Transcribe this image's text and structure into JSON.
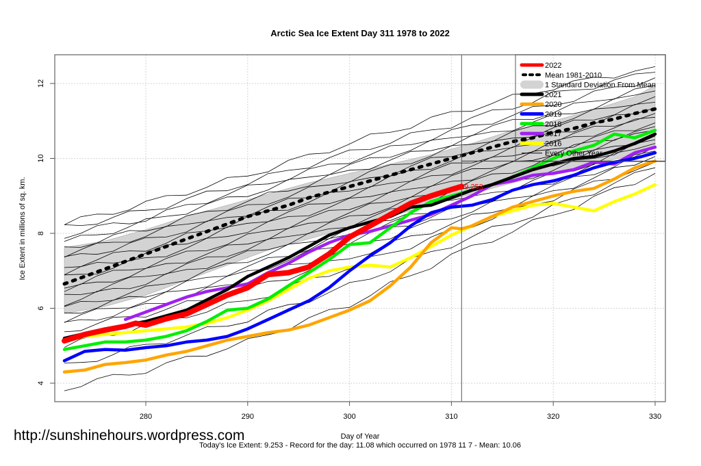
{
  "chart_data": {
    "type": "line",
    "title": "Arctic Sea Ice Extent Day 311 1978 to 2022",
    "xlabel": "Day of Year",
    "ylabel": "Ice Extent in millions of sq. km.",
    "xlim": [
      271.2,
      331.1
    ],
    "ylim": [
      3.5,
      12.75
    ],
    "xticks": [
      280,
      290,
      300,
      310,
      320,
      330
    ],
    "yticks": [
      4,
      6,
      8,
      10,
      12
    ],
    "grid": true,
    "legend_position": "top-right",
    "current_day": 311,
    "current_value": 9.253,
    "current_value_label": "9.253",
    "reference_hline": 9.93,
    "legend": [
      {
        "label": "2022",
        "color": "#ff0000",
        "style": "thick"
      },
      {
        "label": "Mean 1981-2010",
        "color": "#000000",
        "style": "dotted"
      },
      {
        "label": "1 Standard Deviation From Mean",
        "color": "#d3d3d3",
        "style": "band"
      },
      {
        "label": "2021",
        "color": "#000000",
        "style": "thick"
      },
      {
        "label": "2020",
        "color": "#ffa500",
        "style": "thick"
      },
      {
        "label": "2019",
        "color": "#0000ff",
        "style": "thick"
      },
      {
        "label": "2018",
        "color": "#00ee00",
        "style": "thick"
      },
      {
        "label": "2017",
        "color": "#a020f0",
        "style": "thick"
      },
      {
        "label": "2016",
        "color": "#ffff00",
        "style": "thick"
      },
      {
        "label": "Every Other Year",
        "color": "#000000",
        "style": "thin"
      }
    ],
    "band": {
      "x": [
        272,
        276,
        280,
        284,
        288,
        292,
        296,
        300,
        304,
        308,
        312,
        316,
        320,
        324,
        328,
        330
      ],
      "upper": [
        7.62,
        7.8,
        8.1,
        8.45,
        8.75,
        9.05,
        9.35,
        9.6,
        9.85,
        10.1,
        10.4,
        10.75,
        11.0,
        11.3,
        11.65,
        11.95
      ],
      "lower": [
        5.86,
        6.05,
        6.35,
        6.75,
        7.15,
        7.55,
        7.85,
        8.15,
        8.45,
        8.75,
        9.05,
        9.35,
        9.6,
        9.85,
        10.1,
        10.3
      ]
    },
    "mean": {
      "name": "Mean 1981-2010",
      "x": [
        272,
        274,
        276,
        278,
        280,
        282,
        284,
        286,
        288,
        290,
        292,
        294,
        296,
        298,
        300,
        302,
        304,
        306,
        308,
        310,
        312,
        314,
        316,
        318,
        320,
        322,
        324,
        326,
        328,
        330
      ],
      "values": [
        6.65,
        6.85,
        7.05,
        7.25,
        7.45,
        7.65,
        7.85,
        8.05,
        8.25,
        8.45,
        8.6,
        8.75,
        8.95,
        9.1,
        9.25,
        9.4,
        9.55,
        9.7,
        9.85,
        10.0,
        10.15,
        10.3,
        10.45,
        10.55,
        10.7,
        10.8,
        10.95,
        11.05,
        11.2,
        11.32
      ]
    },
    "series": [
      {
        "name": "2022",
        "color": "#ff0000",
        "x": [
          272,
          274,
          276,
          278,
          279,
          280,
          282,
          284,
          286,
          288,
          290,
          292,
          294,
          296,
          298,
          300,
          302,
          304,
          306,
          308,
          310,
          311
        ],
        "values": [
          5.13,
          5.3,
          5.42,
          5.52,
          5.6,
          5.55,
          5.72,
          5.85,
          6.1,
          6.35,
          6.55,
          6.9,
          6.95,
          7.1,
          7.45,
          7.9,
          8.2,
          8.5,
          8.8,
          9.0,
          9.17,
          9.253
        ]
      },
      {
        "name": "2021",
        "color": "#000000",
        "x": [
          272,
          276,
          280,
          284,
          288,
          290,
          292,
          294,
          296,
          298,
          300,
          302,
          304,
          306,
          308,
          310,
          312,
          314,
          316,
          318,
          320,
          322,
          324,
          326,
          328,
          330
        ],
        "values": [
          5.2,
          5.45,
          5.65,
          5.95,
          6.5,
          6.85,
          7.1,
          7.35,
          7.65,
          7.95,
          8.15,
          8.3,
          8.45,
          8.7,
          8.75,
          8.95,
          9.15,
          9.3,
          9.5,
          9.7,
          9.85,
          10.0,
          10.05,
          10.2,
          10.4,
          10.65
        ]
      },
      {
        "name": "2020",
        "color": "#ffa500",
        "x": [
          272,
          274,
          276,
          278,
          280,
          282,
          284,
          286,
          288,
          290,
          292,
          294,
          296,
          298,
          300,
          302,
          304,
          306,
          308,
          310,
          311,
          312,
          314,
          316,
          318,
          320,
          322,
          324,
          326,
          328,
          330
        ],
        "values": [
          4.3,
          4.35,
          4.5,
          4.55,
          4.62,
          4.75,
          4.85,
          5.0,
          5.15,
          5.25,
          5.35,
          5.42,
          5.55,
          5.75,
          5.95,
          6.2,
          6.6,
          7.1,
          7.75,
          8.15,
          8.12,
          8.2,
          8.45,
          8.7,
          8.85,
          9.0,
          9.12,
          9.2,
          9.45,
          9.75,
          9.93
        ]
      },
      {
        "name": "2019",
        "color": "#0000ff",
        "x": [
          272,
          274,
          276,
          278,
          280,
          282,
          284,
          286,
          288,
          290,
          292,
          294,
          296,
          298,
          300,
          302,
          304,
          306,
          308,
          310,
          312,
          314,
          316,
          318,
          320,
          322,
          324,
          326,
          328,
          330
        ],
        "values": [
          4.6,
          4.85,
          4.9,
          4.88,
          4.95,
          5.0,
          5.1,
          5.15,
          5.25,
          5.45,
          5.7,
          5.95,
          6.2,
          6.55,
          7.0,
          7.4,
          7.75,
          8.2,
          8.55,
          8.7,
          8.75,
          8.9,
          9.15,
          9.3,
          9.4,
          9.55,
          9.75,
          9.9,
          10.0,
          10.15
        ]
      },
      {
        "name": "2018",
        "color": "#00ee00",
        "x": [
          272,
          274,
          276,
          278,
          280,
          282,
          284,
          286,
          288,
          290,
          292,
          294,
          296,
          298,
          300,
          302,
          304,
          306,
          308,
          310,
          312,
          314,
          316,
          318,
          320,
          322,
          324,
          326,
          328,
          330
        ],
        "values": [
          4.9,
          5.0,
          5.1,
          5.1,
          5.15,
          5.25,
          5.4,
          5.65,
          5.95,
          6.0,
          6.25,
          6.6,
          6.95,
          7.3,
          7.7,
          7.75,
          8.15,
          8.55,
          8.85,
          9.0,
          9.15,
          9.3,
          9.5,
          9.75,
          10.0,
          10.2,
          10.35,
          10.65,
          10.55,
          10.75
        ]
      },
      {
        "name": "2017",
        "color": "#a020f0",
        "x": [
          278,
          280,
          282,
          284,
          286,
          288,
          290,
          292,
          294,
          296,
          298,
          300,
          302,
          304,
          306,
          308,
          310,
          312,
          314,
          316,
          318,
          320,
          322,
          324,
          326,
          328,
          330
        ],
        "values": [
          5.7,
          5.9,
          6.1,
          6.3,
          6.45,
          6.55,
          6.65,
          6.95,
          7.2,
          7.5,
          7.75,
          7.95,
          8.05,
          8.2,
          8.35,
          8.5,
          8.75,
          9.0,
          9.3,
          9.4,
          9.55,
          9.6,
          9.7,
          9.9,
          9.85,
          10.15,
          10.3
        ]
      },
      {
        "name": "2016",
        "color": "#ffff00",
        "x": [
          272,
          274,
          276,
          278,
          280,
          282,
          284,
          286,
          288,
          290,
          292,
          294,
          296,
          298,
          300,
          302,
          304,
          306,
          308,
          310,
          312,
          314,
          316,
          318,
          320,
          322,
          324,
          326,
          328,
          330
        ],
        "values": [
          5.15,
          5.25,
          5.3,
          5.35,
          5.4,
          5.45,
          5.5,
          5.6,
          5.75,
          5.95,
          6.2,
          6.5,
          6.8,
          7.0,
          7.1,
          7.15,
          7.1,
          7.35,
          7.65,
          7.95,
          8.2,
          8.45,
          8.6,
          8.75,
          8.8,
          8.7,
          8.6,
          8.85,
          9.05,
          9.3
        ]
      }
    ],
    "background_years": {
      "label": "Every Other Year",
      "color": "#000000",
      "lines": [
        {
          "x": [
            272,
            280,
            290,
            300,
            310,
            320,
            330
          ],
          "values": [
            8.25,
            8.8,
            9.55,
            10.4,
            11.2,
            11.9,
            12.45
          ]
        },
        {
          "x": [
            272,
            280,
            290,
            300,
            310,
            320,
            330
          ],
          "values": [
            8.15,
            8.6,
            9.35,
            10.15,
            10.9,
            11.7,
            12.3
          ]
        },
        {
          "x": [
            272,
            280,
            290,
            300,
            310,
            320,
            330
          ],
          "values": [
            7.95,
            8.4,
            9.2,
            9.95,
            10.7,
            11.45,
            12.15
          ]
        },
        {
          "x": [
            272,
            280,
            290,
            300,
            310,
            320,
            330
          ],
          "values": [
            7.75,
            8.3,
            9.05,
            9.8,
            10.55,
            11.25,
            11.95
          ]
        },
        {
          "x": [
            272,
            280,
            290,
            300,
            310,
            320,
            330
          ],
          "values": [
            7.6,
            8.1,
            8.85,
            9.65,
            10.4,
            11.1,
            11.8
          ]
        },
        {
          "x": [
            272,
            280,
            290,
            300,
            310,
            320,
            330
          ],
          "values": [
            7.45,
            7.95,
            8.7,
            9.45,
            10.25,
            10.95,
            11.65
          ]
        },
        {
          "x": [
            272,
            280,
            290,
            300,
            310,
            320,
            330
          ],
          "values": [
            7.3,
            7.8,
            8.55,
            9.3,
            10.1,
            10.8,
            11.5
          ]
        },
        {
          "x": [
            272,
            280,
            290,
            300,
            310,
            320,
            330
          ],
          "values": [
            7.1,
            7.6,
            8.4,
            9.15,
            9.95,
            10.65,
            11.35
          ]
        },
        {
          "x": [
            272,
            280,
            290,
            300,
            310,
            320,
            330
          ],
          "values": [
            6.95,
            7.45,
            8.25,
            9.0,
            9.8,
            10.5,
            11.2
          ]
        },
        {
          "x": [
            272,
            280,
            290,
            300,
            310,
            320,
            330
          ],
          "values": [
            6.8,
            7.3,
            8.1,
            8.85,
            9.65,
            10.4,
            11.1
          ]
        },
        {
          "x": [
            272,
            280,
            290,
            300,
            310,
            320,
            330
          ],
          "values": [
            6.6,
            7.15,
            7.9,
            8.7,
            9.5,
            10.25,
            10.95
          ]
        },
        {
          "x": [
            272,
            280,
            290,
            300,
            310,
            320,
            330
          ],
          "values": [
            6.45,
            7.0,
            7.75,
            8.55,
            9.35,
            10.15,
            10.85
          ]
        },
        {
          "x": [
            272,
            280,
            290,
            300,
            310,
            320,
            330
          ],
          "values": [
            6.3,
            6.85,
            7.6,
            8.4,
            9.2,
            10.0,
            10.75
          ]
        },
        {
          "x": [
            272,
            280,
            290,
            300,
            310,
            320,
            330
          ],
          "values": [
            6.15,
            6.7,
            7.45,
            8.25,
            9.05,
            9.85,
            10.6
          ]
        },
        {
          "x": [
            272,
            280,
            290,
            300,
            310,
            320,
            330
          ],
          "values": [
            6.0,
            6.5,
            7.3,
            8.1,
            8.9,
            9.7,
            10.5
          ]
        },
        {
          "x": [
            272,
            280,
            290,
            300,
            310,
            320,
            330
          ],
          "values": [
            5.85,
            6.35,
            7.1,
            7.95,
            8.75,
            9.55,
            10.4
          ]
        },
        {
          "x": [
            272,
            280,
            290,
            300,
            310,
            320,
            330
          ],
          "values": [
            5.7,
            6.2,
            6.95,
            7.8,
            8.6,
            9.4,
            10.3
          ]
        },
        {
          "x": [
            272,
            280,
            290,
            300,
            310,
            320,
            330
          ],
          "values": [
            5.55,
            6.05,
            6.75,
            7.6,
            8.45,
            9.25,
            10.2
          ]
        },
        {
          "x": [
            272,
            280,
            290,
            300,
            310,
            320,
            330
          ],
          "values": [
            5.4,
            5.85,
            6.5,
            7.35,
            8.25,
            9.1,
            10.05
          ]
        },
        {
          "x": [
            272,
            280,
            290,
            300,
            310,
            320,
            330
          ],
          "values": [
            5.0,
            5.55,
            6.2,
            7.1,
            8.05,
            8.95,
            9.9
          ]
        },
        {
          "x": [
            272,
            280,
            290,
            300,
            310,
            320,
            330
          ],
          "values": [
            4.45,
            5.0,
            5.7,
            6.6,
            7.7,
            8.7,
            9.75
          ]
        },
        {
          "x": [
            272,
            280,
            290,
            300,
            310,
            320,
            330
          ],
          "values": [
            3.87,
            4.35,
            5.1,
            6.1,
            7.4,
            8.5,
            9.6
          ]
        }
      ]
    }
  },
  "footer": {
    "watermark": "http://sunshinehours.wordpress.com",
    "summary": "Today's Ice Extent: 9.253  - Record for the day: 11.08 which occurred on 1978 11 7  - Mean: 10.06"
  }
}
